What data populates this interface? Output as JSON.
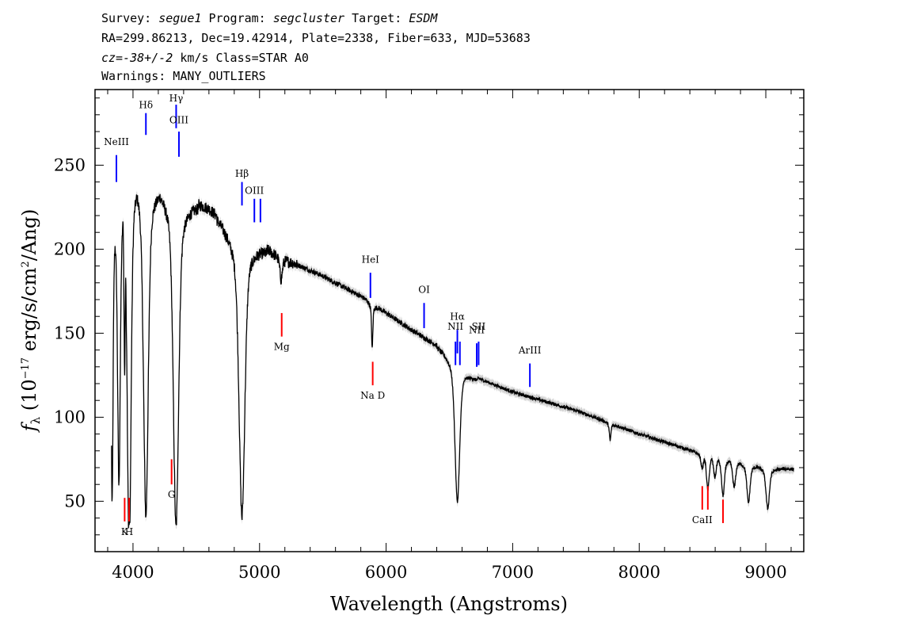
{
  "header": {
    "survey_label": "Survey:",
    "survey": "segue1",
    "program_label": "Program:",
    "program": "segcluster",
    "target_label": "Target:",
    "target": "ESDM",
    "line2": "RA=299.86213, Dec=19.42914, Plate=2338, Fiber=633, MJD=53683",
    "cz_label": "cz=",
    "cz_value": "-38+/-2",
    "cz_rest": " km/s Class=STAR A0",
    "warnings": "Warnings: MANY_OUTLIERS"
  },
  "chart_data": {
    "type": "line",
    "xlabel": "Wavelength (Angstroms)",
    "ylabel": "f_λ (10^-17 erg/s/cm^2/Ang)",
    "xlim": [
      3700,
      9300
    ],
    "ylim": [
      20,
      295
    ],
    "x_ticks": [
      4000,
      5000,
      6000,
      7000,
      8000,
      9000
    ],
    "y_ticks": [
      50,
      100,
      150,
      200,
      250
    ],
    "continuum": [
      [
        3830,
        210
      ],
      [
        3900,
        228
      ],
      [
        4000,
        246
      ],
      [
        4100,
        243
      ],
      [
        4200,
        238
      ],
      [
        4300,
        234
      ],
      [
        4400,
        230
      ],
      [
        4600,
        224
      ],
      [
        4800,
        210
      ],
      [
        5000,
        202
      ],
      [
        5200,
        194
      ],
      [
        5500,
        184
      ],
      [
        5800,
        172
      ],
      [
        6000,
        162
      ],
      [
        6200,
        152
      ],
      [
        6500,
        138
      ],
      [
        6700,
        124
      ],
      [
        7000,
        115
      ],
      [
        7500,
        104
      ],
      [
        8000,
        90
      ],
      [
        8500,
        78
      ],
      [
        9000,
        70
      ],
      [
        9220,
        69
      ]
    ],
    "absorption_lines": [
      {
        "x": 3835,
        "depth": 0.58,
        "width": 7
      },
      {
        "x": 3889,
        "depth": 0.55,
        "width": 10
      },
      {
        "x": 3934,
        "depth": 0.35,
        "width": 5
      },
      {
        "x": 3970,
        "depth": 0.7,
        "width": 14
      },
      {
        "x": 4102,
        "depth": 0.62,
        "width": 18
      },
      {
        "x": 4340,
        "depth": 0.64,
        "width": 20
      },
      {
        "x": 4861,
        "depth": 0.6,
        "width": 22
      },
      {
        "x": 5170,
        "depth": 0.05,
        "width": 10
      },
      {
        "x": 5890,
        "depth": 0.12,
        "width": 5
      },
      {
        "x": 6563,
        "depth": 0.47,
        "width": 18
      },
      {
        "x": 7770,
        "depth": 0.08,
        "width": 6
      },
      {
        "x": 8498,
        "depth": 0.08,
        "width": 10
      },
      {
        "x": 8542,
        "depth": 0.2,
        "width": 10
      },
      {
        "x": 8598,
        "depth": 0.12,
        "width": 10
      },
      {
        "x": 8662,
        "depth": 0.22,
        "width": 11
      },
      {
        "x": 8750,
        "depth": 0.16,
        "width": 11
      },
      {
        "x": 8863,
        "depth": 0.24,
        "width": 12
      },
      {
        "x": 9015,
        "depth": 0.26,
        "width": 13
      }
    ],
    "emission_markers": [
      {
        "label": "NeIII",
        "x": 3869,
        "y1": 240,
        "y2": 256,
        "label_y": 262
      },
      {
        "label": "Hδ",
        "x": 4102,
        "y1": 268,
        "y2": 281,
        "label_y": 284
      },
      {
        "label": "Hγ",
        "x": 4341,
        "y1": 272,
        "y2": 286,
        "label_y": 288
      },
      {
        "label": "OIII",
        "x": 4363,
        "y1": 255,
        "y2": 270,
        "label_y": 275
      },
      {
        "label": "Hβ",
        "x": 4861,
        "y1": 226,
        "y2": 240,
        "label_y": 243
      },
      {
        "label": "OIII",
        "x": 4959,
        "y1": 216,
        "y2": 230,
        "label_y": 233
      },
      {
        "label": "",
        "x": 5007,
        "y1": 216,
        "y2": 230,
        "label_y": 0
      },
      {
        "label": "HeI",
        "x": 5876,
        "y1": 171,
        "y2": 186,
        "label_y": 192
      },
      {
        "label": "OI",
        "x": 6300,
        "y1": 153,
        "y2": 168,
        "label_y": 174
      },
      {
        "label": "NII",
        "x": 6548,
        "y1": 131,
        "y2": 145,
        "label_y": 152
      },
      {
        "label": "Hα",
        "x": 6563,
        "y1": 138,
        "y2": 152,
        "label_y": 158
      },
      {
        "label": "",
        "x": 6583,
        "y1": 131,
        "y2": 145,
        "label_y": 0
      },
      {
        "label": "NII",
        "x": 6716,
        "y1": 130,
        "y2": 144,
        "label_y": 150
      },
      {
        "label": "SII",
        "x": 6731,
        "y1": 131,
        "y2": 145,
        "label_y": 152
      },
      {
        "label": "ArIII",
        "x": 7136,
        "y1": 118,
        "y2": 132,
        "label_y": 138
      }
    ],
    "absorption_markers": [
      {
        "label": "K",
        "x": 3934,
        "y1": 38,
        "y2": 52,
        "label_y": 30
      },
      {
        "label": "H",
        "x": 3969,
        "y1": 38,
        "y2": 52,
        "label_y": 30
      },
      {
        "label": "G",
        "x": 4305,
        "y1": 60,
        "y2": 75,
        "label_y": 52
      },
      {
        "label": "Mg",
        "x": 5175,
        "y1": 148,
        "y2": 162,
        "label_y": 140
      },
      {
        "label": "Na D",
        "x": 5894,
        "y1": 119,
        "y2": 133,
        "label_y": 111
      },
      {
        "label": "CaII",
        "x": 8498,
        "y1": 45,
        "y2": 59,
        "label_y": 37
      },
      {
        "label": "",
        "x": 8542,
        "y1": 45,
        "y2": 59,
        "label_y": 0
      },
      {
        "label": "",
        "x": 8662,
        "y1": 37,
        "y2": 51,
        "label_y": 0
      }
    ],
    "colors": {
      "spectrum": "#000000",
      "error_band": "#aaaaaa",
      "emission": "#0000ff",
      "absorption": "#ff0000"
    }
  }
}
